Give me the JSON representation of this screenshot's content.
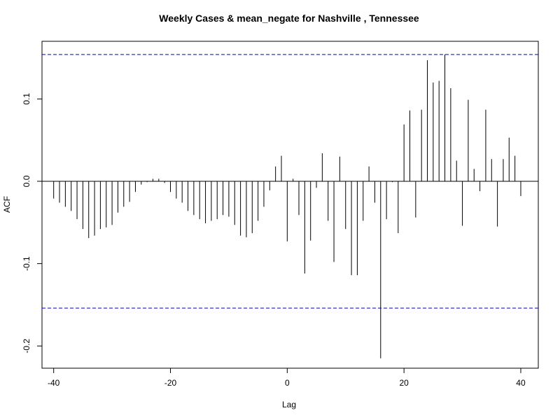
{
  "chart_data": {
    "type": "bar",
    "title": "Weekly Cases & mean_negate for Nashville , Tennessee",
    "xlabel": "Lag",
    "ylabel": "ACF",
    "xlim": [
      -42,
      43
    ],
    "ylim": [
      -0.227,
      0.17
    ],
    "x_ticks": [
      -40,
      -20,
      0,
      20,
      40
    ],
    "y_ticks": [
      -0.2,
      -0.1,
      0.0,
      0.1
    ],
    "y_tick_labels": [
      "-0.2",
      "-0.1",
      "0.0",
      "0.1"
    ],
    "x_tick_labels": [
      "-40",
      "-20",
      "0",
      "20",
      "40"
    ],
    "confidence_bound": 0.154,
    "colors": {
      "spike": "#000000",
      "bound": "#0000cc",
      "zero_line": "#000000"
    },
    "lags": [
      -40,
      -39,
      -38,
      -37,
      -36,
      -35,
      -34,
      -33,
      -32,
      -31,
      -30,
      -29,
      -28,
      -27,
      -26,
      -25,
      -24,
      -23,
      -22,
      -21,
      -20,
      -19,
      -18,
      -17,
      -16,
      -15,
      -14,
      -13,
      -12,
      -11,
      -10,
      -9,
      -8,
      -7,
      -6,
      -5,
      -4,
      -3,
      -2,
      -1,
      0,
      1,
      2,
      3,
      4,
      5,
      6,
      7,
      8,
      9,
      10,
      11,
      12,
      13,
      14,
      15,
      16,
      17,
      18,
      19,
      20,
      21,
      22,
      23,
      24,
      25,
      26,
      27,
      28,
      29,
      30,
      31,
      32,
      33,
      34,
      35,
      36,
      37,
      38,
      39,
      40
    ],
    "values": [
      -0.021,
      -0.026,
      -0.031,
      -0.036,
      -0.046,
      -0.058,
      -0.069,
      -0.066,
      -0.058,
      -0.056,
      -0.053,
      -0.038,
      -0.031,
      -0.025,
      -0.013,
      -0.004,
      -0.001,
      0.003,
      0.003,
      -0.002,
      -0.013,
      -0.021,
      -0.026,
      -0.036,
      -0.041,
      -0.046,
      -0.051,
      -0.048,
      -0.046,
      -0.041,
      -0.043,
      -0.053,
      -0.066,
      -0.068,
      -0.063,
      -0.048,
      -0.031,
      -0.011,
      0.018,
      0.031,
      -0.073,
      0.003,
      -0.041,
      -0.112,
      -0.072,
      -0.008,
      0.034,
      -0.048,
      -0.098,
      0.03,
      -0.058,
      -0.114,
      -0.114,
      -0.048,
      0.018,
      -0.026,
      -0.215,
      -0.046,
      -0.001,
      -0.063,
      0.069,
      0.086,
      -0.044,
      0.087,
      0.147,
      0.12,
      0.122,
      0.154,
      0.113,
      0.025,
      -0.054,
      0.099,
      0.015,
      -0.012,
      0.087,
      0.027,
      -0.055,
      0.027,
      0.053,
      0.031,
      -0.018
    ]
  }
}
